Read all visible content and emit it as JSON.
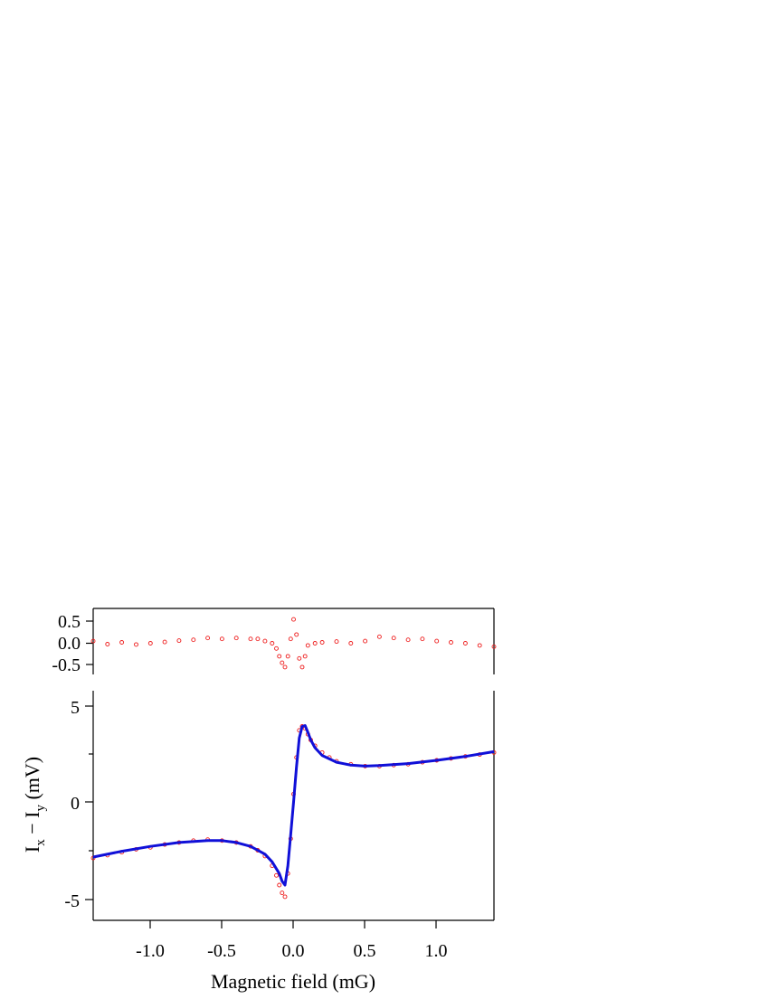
{
  "chart_data": [
    {
      "panel": "residual",
      "type": "scatter",
      "title": "",
      "xlabel": "",
      "ylabel": "",
      "xlim": [
        -1.4,
        1.4
      ],
      "ylim": [
        -0.7,
        0.78
      ],
      "yticks": [
        -0.5,
        0.0,
        0.5
      ],
      "ytick_labels": [
        "-0.5",
        "0.0",
        "0.5"
      ],
      "grid": false,
      "legend": "none",
      "colors": {
        "marker": "#ee1c1c"
      },
      "series": [
        {
          "style": "open-circle",
          "x": [
            -1.4,
            -1.3,
            -1.2,
            -1.1,
            -1.0,
            -0.9,
            -0.8,
            -0.7,
            -0.6,
            -0.5,
            -0.4,
            -0.3,
            -0.25,
            -0.2,
            -0.15,
            -0.12,
            -0.1,
            -0.08,
            -0.06,
            -0.04,
            -0.02,
            0.0,
            0.02,
            0.04,
            0.06,
            0.08,
            0.1,
            0.15,
            0.2,
            0.3,
            0.4,
            0.5,
            0.6,
            0.7,
            0.8,
            0.9,
            1.0,
            1.1,
            1.2,
            1.3,
            1.4
          ],
          "y": [
            0.05,
            -0.02,
            0.02,
            -0.03,
            0.0,
            0.03,
            0.06,
            0.08,
            0.12,
            0.1,
            0.12,
            0.1,
            0.1,
            0.05,
            0.0,
            -0.12,
            -0.3,
            -0.45,
            -0.55,
            -0.3,
            0.1,
            0.55,
            0.2,
            -0.35,
            -0.55,
            -0.3,
            -0.05,
            0.0,
            0.02,
            0.04,
            0.0,
            0.05,
            0.15,
            0.12,
            0.08,
            0.1,
            0.05,
            0.02,
            0.0,
            -0.05,
            -0.08
          ]
        }
      ]
    },
    {
      "panel": "main",
      "type": "scatter",
      "title": "",
      "xlabel": "Magnetic field (mG)",
      "ylabel_main": "I",
      "ylabel_sub_x": "x",
      "ylabel_minus": " − ",
      "ylabel_sub_y": "y",
      "ylabel_unit": " (mV)",
      "xlim": [
        -1.4,
        1.4
      ],
      "ylim": [
        -6,
        5.8
      ],
      "xticks": [
        -1.0,
        -0.5,
        0.0,
        0.5,
        1.0
      ],
      "xtick_labels": [
        "-1.0",
        "-0.5",
        "0.0",
        "0.5",
        "1.0"
      ],
      "yticks": [
        -5,
        0,
        5
      ],
      "ytick_labels": [
        "-5",
        "0",
        "5"
      ],
      "grid": false,
      "legend": "none",
      "colors": {
        "data": "#ee1c1c",
        "fit": "#1010d8"
      },
      "series": [
        {
          "style": "open-circle",
          "x": [
            -1.4,
            -1.3,
            -1.2,
            -1.1,
            -1.0,
            -0.9,
            -0.8,
            -0.7,
            -0.6,
            -0.5,
            -0.4,
            -0.3,
            -0.25,
            -0.2,
            -0.15,
            -0.12,
            -0.1,
            -0.08,
            -0.06,
            -0.04,
            -0.02,
            0.0,
            0.02,
            0.04,
            0.06,
            0.08,
            0.1,
            0.12,
            0.15,
            0.2,
            0.25,
            0.3,
            0.4,
            0.5,
            0.6,
            0.7,
            0.8,
            0.9,
            1.0,
            1.1,
            1.2,
            1.3,
            1.4
          ],
          "y": [
            -2.9,
            -2.75,
            -2.6,
            -2.45,
            -2.35,
            -2.2,
            -2.1,
            -2.0,
            -1.95,
            -2.0,
            -2.1,
            -2.3,
            -2.5,
            -2.8,
            -3.3,
            -3.8,
            -4.3,
            -4.7,
            -4.9,
            -3.7,
            -1.9,
            0.4,
            2.3,
            3.7,
            3.9,
            3.8,
            3.5,
            3.2,
            2.9,
            2.55,
            2.3,
            2.1,
            1.95,
            1.85,
            1.85,
            1.9,
            1.95,
            2.05,
            2.15,
            2.25,
            2.35,
            2.45,
            2.55
          ]
        },
        {
          "style": "line",
          "x": [
            -1.4,
            -1.2,
            -1.0,
            -0.8,
            -0.6,
            -0.5,
            -0.4,
            -0.3,
            -0.2,
            -0.15,
            -0.1,
            -0.08,
            -0.06,
            -0.04,
            -0.02,
            0.0,
            0.02,
            0.04,
            0.06,
            0.08,
            0.1,
            0.12,
            0.15,
            0.2,
            0.3,
            0.4,
            0.5,
            0.6,
            0.8,
            1.0,
            1.2,
            1.4
          ],
          "y": [
            -2.85,
            -2.55,
            -2.3,
            -2.1,
            -2.0,
            -2.0,
            -2.1,
            -2.3,
            -2.7,
            -3.1,
            -3.7,
            -4.1,
            -4.3,
            -3.3,
            -1.7,
            0.0,
            1.8,
            3.3,
            3.9,
            3.95,
            3.6,
            3.2,
            2.8,
            2.4,
            2.05,
            1.9,
            1.85,
            1.88,
            1.98,
            2.15,
            2.35,
            2.6
          ]
        }
      ]
    }
  ]
}
